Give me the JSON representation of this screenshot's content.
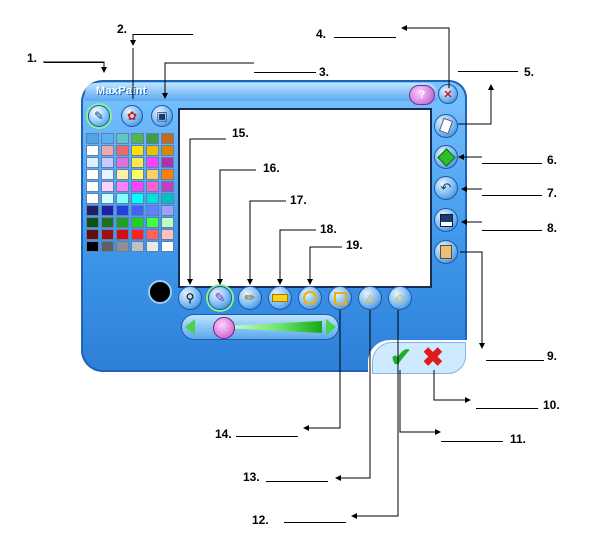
{
  "window": {
    "title": "MaxPaint"
  },
  "top_toolbar": [
    {
      "name": "pencil-mode-button",
      "icon": "pencil-icon",
      "active": true
    },
    {
      "name": "stamp-mode-button",
      "icon": "stamp-icon",
      "active": false
    },
    {
      "name": "frames-button",
      "icon": "frame-icon",
      "active": false
    }
  ],
  "window_controls": [
    {
      "name": "help-button",
      "icon": "question-bubble-icon"
    },
    {
      "name": "close-button",
      "icon": "close-icon"
    }
  ],
  "side_buttons": [
    {
      "name": "eraser-button",
      "icon": "eraser-icon"
    },
    {
      "name": "fill-button",
      "icon": "paint-bucket-icon"
    },
    {
      "name": "undo-button",
      "icon": "undo-icon"
    },
    {
      "name": "save-button",
      "icon": "floppy-disk-icon"
    },
    {
      "name": "paste-button",
      "icon": "clipboard-icon"
    }
  ],
  "palette": {
    "colors": [
      "#4aa6e8",
      "#5ab0f0",
      "#61c6c6",
      "#53b64f",
      "#3f9e3f",
      "#c86a1a",
      "#ffffff",
      "#f0a8a8",
      "#ee6a6a",
      "#ffe000",
      "#f0c000",
      "#d68a00",
      "#d8f0ff",
      "#c8c8ff",
      "#e070e0",
      "#ffe84a",
      "#ff40ff",
      "#b030b0",
      "#ffffff",
      "#e8f4ff",
      "#fff0a0",
      "#ffff60",
      "#ffd060",
      "#ff8000",
      "#ffffff",
      "#ffd0ff",
      "#ff80ff",
      "#ff40ff",
      "#ff60d0",
      "#c040c0",
      "#ffffff",
      "#d0ffff",
      "#80ffff",
      "#00ffff",
      "#00e0e0",
      "#00c0c0",
      "#202060",
      "#2020a0",
      "#2040e0",
      "#4060ff",
      "#6080ff",
      "#a0a0ff",
      "#105010",
      "#207020",
      "#20a020",
      "#20d020",
      "#40ff40",
      "#c0ffc0",
      "#601010",
      "#a01010",
      "#d01010",
      "#ff2020",
      "#ff6060",
      "#ffc0c0",
      "#000000",
      "#606060",
      "#909090",
      "#c0c0c0",
      "#e8e8e8",
      "#ffffff"
    ]
  },
  "current_color": "#000000",
  "tools": [
    {
      "name": "eyedropper-tool",
      "icon": "eyedropper-icon",
      "active": false
    },
    {
      "name": "brush-tool",
      "icon": "brush-icon",
      "active": true
    },
    {
      "name": "pencil-tool",
      "icon": "pencil-icon",
      "active": false
    },
    {
      "name": "line-tool",
      "icon": "line-icon",
      "active": false
    },
    {
      "name": "circle-tool",
      "icon": "circle-icon",
      "active": false
    },
    {
      "name": "square-tool",
      "icon": "square-icon",
      "active": false
    },
    {
      "name": "triangle-tool",
      "icon": "triangle-icon",
      "active": false
    },
    {
      "name": "diamond-tool",
      "icon": "diamond-icon",
      "active": false
    }
  ],
  "brush_size_slider": {
    "level": 0.15
  },
  "confirm": {
    "ok_icon": "checkmark-icon",
    "cancel_icon": "x-icon"
  },
  "callouts": [
    {
      "label": "1."
    },
    {
      "label": "2."
    },
    {
      "label": "3."
    },
    {
      "label": "4."
    },
    {
      "label": "5."
    },
    {
      "label": "6."
    },
    {
      "label": "7."
    },
    {
      "label": "8."
    },
    {
      "label": "9."
    },
    {
      "label": "10."
    },
    {
      "label": "11."
    },
    {
      "label": "12."
    },
    {
      "label": "13."
    },
    {
      "label": "14."
    },
    {
      "label": "15."
    },
    {
      "label": "16."
    },
    {
      "label": "17."
    },
    {
      "label": "18."
    },
    {
      "label": "19."
    }
  ]
}
